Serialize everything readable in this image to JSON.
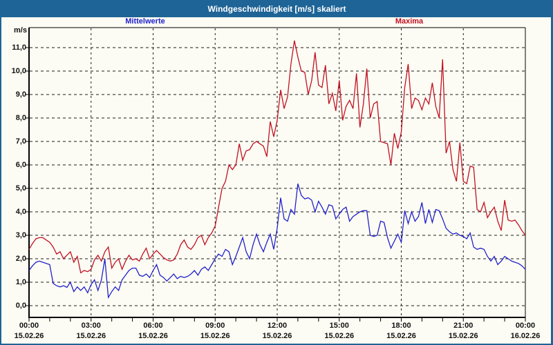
{
  "window": {
    "title": "Windgeschwindigkeit [m/s] skaliert",
    "title_bar_color": "#1e6496",
    "background_color": "#fcfcf4",
    "border_color": "#1e6496"
  },
  "legend": {
    "mean": {
      "label": "Mittelwerte",
      "color": "#2020cc"
    },
    "maxima": {
      "label": "Maxima",
      "color": "#c01020"
    }
  },
  "axes": {
    "y_unit": "m/s",
    "grid_color": "#1a1a1a",
    "axis_color": "#000000",
    "y_ticks": [
      {
        "value": 0,
        "label": "0,0"
      },
      {
        "value": 1,
        "label": "1,0"
      },
      {
        "value": 2,
        "label": "2,0"
      },
      {
        "value": 3,
        "label": "3,0"
      },
      {
        "value": 4,
        "label": "4,0"
      },
      {
        "value": 5,
        "label": "5,0"
      },
      {
        "value": 6,
        "label": "6,0"
      },
      {
        "value": 7,
        "label": "7,0"
      },
      {
        "value": 8,
        "label": "8,0"
      },
      {
        "value": 9,
        "label": "9,0"
      },
      {
        "value": 10,
        "label": "10,0"
      },
      {
        "value": 11,
        "label": "11,0"
      }
    ],
    "x_ticks": [
      {
        "hours": 0,
        "time": "00:00",
        "date": "15.02.26"
      },
      {
        "hours": 3,
        "time": "03:00",
        "date": "15.02.26"
      },
      {
        "hours": 6,
        "time": "06:00",
        "date": "15.02.26"
      },
      {
        "hours": 9,
        "time": "09:00",
        "date": "15.02.26"
      },
      {
        "hours": 12,
        "time": "12:00",
        "date": "15.02.26"
      },
      {
        "hours": 15,
        "time": "15:00",
        "date": "15.02.26"
      },
      {
        "hours": 18,
        "time": "18:00",
        "date": "15.02.26"
      },
      {
        "hours": 21,
        "time": "21:00",
        "date": "15.02.26"
      },
      {
        "hours": 24,
        "time": "00:00",
        "date": "16.02.26"
      }
    ],
    "minor_tick_every_hours": 1
  },
  "chart_data": {
    "type": "line",
    "title": "Windgeschwindigkeit [m/s] skaliert",
    "ylabel": "m/s",
    "xlabel": "",
    "ylim": [
      -0.5,
      11.85
    ],
    "xlim_hours": [
      0,
      24
    ],
    "grid": "dashed",
    "legend_position": "top",
    "x_start": "15.02.26 00:00",
    "x_end": "16.02.26 00:00",
    "sample_interval_minutes": 10,
    "series": [
      {
        "name": "Mittelwerte",
        "color": "#2020cc",
        "values": [
          1.5,
          1.7,
          1.85,
          1.9,
          1.85,
          1.8,
          1.75,
          0.95,
          0.85,
          0.8,
          0.85,
          0.78,
          1.0,
          0.6,
          0.8,
          0.65,
          0.8,
          0.55,
          0.9,
          1.1,
          0.65,
          1.1,
          2.0,
          0.35,
          0.6,
          0.8,
          0.65,
          1.1,
          1.3,
          1.5,
          1.6,
          1.6,
          1.3,
          1.25,
          1.35,
          1.2,
          1.5,
          1.75,
          1.3,
          1.2,
          1.05,
          1.2,
          1.35,
          1.15,
          1.25,
          1.2,
          1.25,
          1.35,
          1.5,
          1.3,
          1.55,
          1.65,
          1.5,
          1.75,
          2.0,
          2.2,
          2.1,
          2.4,
          2.3,
          1.75,
          2.1,
          2.5,
          2.9,
          2.3,
          2.0,
          2.6,
          3.05,
          2.6,
          2.3,
          2.7,
          3.05,
          2.4,
          3.3,
          4.6,
          3.7,
          3.6,
          4.1,
          3.9,
          5.2,
          4.7,
          4.55,
          4.6,
          4.5,
          4.0,
          4.45,
          4.2,
          3.9,
          4.3,
          4.25,
          3.7,
          3.9,
          4.1,
          4.2,
          3.6,
          3.8,
          3.9,
          4.0,
          4.05,
          4.05,
          3.0,
          2.95,
          3.0,
          3.6,
          3.55,
          2.9,
          2.45,
          2.75,
          3.05,
          2.7,
          4.05,
          3.5,
          4.0,
          3.6,
          3.8,
          4.4,
          3.5,
          4.1,
          3.55,
          4.1,
          4.05,
          3.7,
          3.3,
          3.15,
          3.05,
          3.1,
          3.0,
          2.95,
          2.85,
          3.1,
          2.5,
          2.4,
          2.45,
          2.4,
          2.1,
          1.9,
          2.1,
          1.75,
          1.9,
          2.1,
          2.0,
          1.9,
          1.85,
          1.8,
          1.7,
          1.55
        ]
      },
      {
        "name": "Maxima",
        "color": "#c01020",
        "values": [
          2.4,
          2.65,
          2.85,
          2.9,
          2.9,
          2.8,
          2.7,
          2.5,
          2.2,
          2.3,
          2.0,
          2.15,
          2.3,
          1.85,
          2.1,
          1.4,
          1.5,
          1.45,
          1.55,
          1.95,
          2.15,
          1.9,
          2.3,
          2.5,
          1.6,
          1.85,
          2.0,
          1.55,
          1.9,
          2.15,
          1.95,
          2.0,
          1.9,
          2.2,
          2.45,
          2.0,
          2.2,
          2.35,
          2.2,
          2.05,
          1.95,
          1.9,
          1.95,
          2.2,
          2.6,
          2.8,
          2.5,
          2.4,
          2.6,
          2.9,
          3.0,
          2.6,
          2.9,
          3.1,
          3.4,
          4.2,
          5.0,
          5.3,
          6.0,
          5.8,
          6.0,
          6.9,
          6.2,
          6.6,
          6.65,
          6.9,
          7.0,
          6.9,
          6.8,
          6.35,
          7.85,
          7.2,
          7.9,
          9.2,
          8.4,
          8.9,
          10.3,
          11.3,
          10.6,
          10.0,
          9.95,
          9.0,
          9.6,
          10.8,
          9.4,
          9.3,
          10.25,
          8.6,
          9.05,
          8.3,
          9.6,
          7.9,
          8.5,
          8.75,
          8.4,
          9.9,
          7.6,
          8.6,
          10.1,
          8.0,
          8.6,
          8.7,
          7.0,
          6.95,
          6.9,
          6.0,
          7.35,
          6.7,
          7.4,
          9.3,
          10.3,
          8.4,
          8.85,
          8.75,
          8.35,
          8.85,
          8.6,
          9.5,
          8.5,
          8.0,
          10.5,
          6.5,
          7.0,
          5.8,
          5.3,
          6.95,
          5.3,
          5.2,
          5.95,
          5.9,
          4.1,
          4.0,
          4.4,
          3.75,
          4.0,
          4.2,
          3.6,
          3.2,
          4.5,
          3.65,
          3.6,
          3.65,
          3.45,
          3.2,
          3.0
        ]
      }
    ]
  }
}
